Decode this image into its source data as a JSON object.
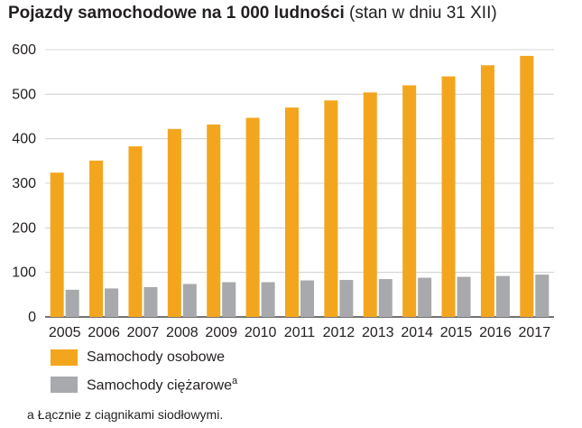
{
  "title": {
    "main": "Pojazdy samochodowe na 1 000 ludności",
    "sub": "(stan w dniu 31 XII)"
  },
  "chart_data": {
    "type": "bar",
    "categories": [
      "2005",
      "2006",
      "2007",
      "2008",
      "2009",
      "2010",
      "2011",
      "2012",
      "2013",
      "2014",
      "2015",
      "2016",
      "2017"
    ],
    "series": [
      {
        "name": "Samochody osobowe",
        "color": "#f3a61d",
        "values": [
          324,
          351,
          383,
          422,
          432,
          447,
          470,
          486,
          504,
          520,
          540,
          565,
          586
        ]
      },
      {
        "name": "Samochody ciężarowe",
        "color": "#a7a9ac",
        "values": [
          61,
          64,
          67,
          74,
          78,
          78,
          82,
          83,
          85,
          88,
          90,
          92,
          95
        ]
      }
    ],
    "ylim": [
      0,
      600
    ],
    "yticks": [
      0,
      100,
      200,
      300,
      400,
      500,
      600
    ],
    "grid": true,
    "legend": "bottom-left"
  },
  "legend": {
    "items": [
      {
        "label": "Samochody osobowe",
        "color": "#f3a61d",
        "sup": ""
      },
      {
        "label": "Samochody ciężarowe",
        "color": "#a7a9ac",
        "sup": "a"
      }
    ]
  },
  "footnote": {
    "mark": "a",
    "text": "Łącznie z ciągnikami siodłowymi."
  }
}
